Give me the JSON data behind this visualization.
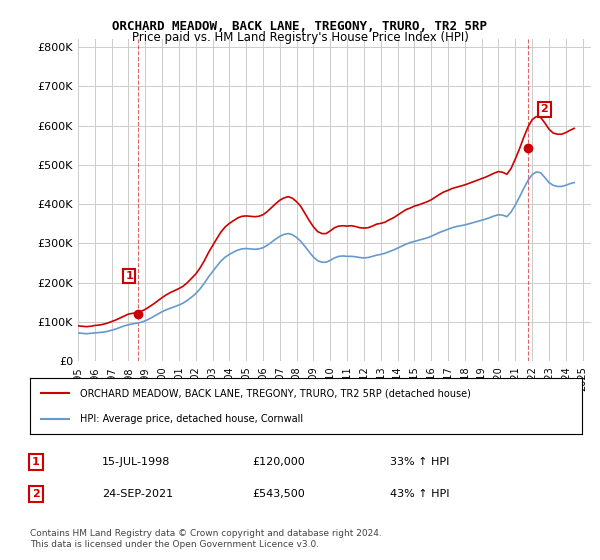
{
  "title": "ORCHARD MEADOW, BACK LANE, TREGONY, TRURO, TR2 5RP",
  "subtitle": "Price paid vs. HM Land Registry's House Price Index (HPI)",
  "ylabel_ticks": [
    "£0",
    "£100K",
    "£200K",
    "£300K",
    "£400K",
    "£500K",
    "£600K",
    "£700K",
    "£800K"
  ],
  "ytick_values": [
    0,
    100000,
    200000,
    300000,
    400000,
    500000,
    600000,
    700000,
    800000
  ],
  "ylim": [
    0,
    820000
  ],
  "xlim_start": 1995.0,
  "xlim_end": 2025.5,
  "xtick_years": [
    1995,
    1996,
    1997,
    1998,
    1999,
    2000,
    2001,
    2002,
    2003,
    2004,
    2005,
    2006,
    2007,
    2008,
    2009,
    2010,
    2011,
    2012,
    2013,
    2014,
    2015,
    2016,
    2017,
    2018,
    2019,
    2020,
    2021,
    2022,
    2023,
    2024,
    2025
  ],
  "bg_color": "#ffffff",
  "grid_color": "#cccccc",
  "red_color": "#cc0000",
  "blue_color": "#6699cc",
  "marker_color_1": "#cc0000",
  "marker_color_2": "#cc0000",
  "point1_x": 1998.54,
  "point1_y": 120000,
  "point2_x": 2021.73,
  "point2_y": 543500,
  "legend_red_label": "ORCHARD MEADOW, BACK LANE, TREGONY, TRURO, TR2 5RP (detached house)",
  "legend_blue_label": "HPI: Average price, detached house, Cornwall",
  "annotation1_label": "1",
  "annotation2_label": "2",
  "table_row1": [
    "1",
    "15-JUL-1998",
    "£120,000",
    "33% ↑ HPI"
  ],
  "table_row2": [
    "2",
    "24-SEP-2021",
    "£543,500",
    "43% ↑ HPI"
  ],
  "footer": "Contains HM Land Registry data © Crown copyright and database right 2024.\nThis data is licensed under the Open Government Licence v3.0.",
  "hpi_data_x": [
    1995.0,
    1995.25,
    1995.5,
    1995.75,
    1996.0,
    1996.25,
    1996.5,
    1996.75,
    1997.0,
    1997.25,
    1997.5,
    1997.75,
    1998.0,
    1998.25,
    1998.5,
    1998.75,
    1999.0,
    1999.25,
    1999.5,
    1999.75,
    2000.0,
    2000.25,
    2000.5,
    2000.75,
    2001.0,
    2001.25,
    2001.5,
    2001.75,
    2002.0,
    2002.25,
    2002.5,
    2002.75,
    2003.0,
    2003.25,
    2003.5,
    2003.75,
    2004.0,
    2004.25,
    2004.5,
    2004.75,
    2005.0,
    2005.25,
    2005.5,
    2005.75,
    2006.0,
    2006.25,
    2006.5,
    2006.75,
    2007.0,
    2007.25,
    2007.5,
    2007.75,
    2008.0,
    2008.25,
    2008.5,
    2008.75,
    2009.0,
    2009.25,
    2009.5,
    2009.75,
    2010.0,
    2010.25,
    2010.5,
    2010.75,
    2011.0,
    2011.25,
    2011.5,
    2011.75,
    2012.0,
    2012.25,
    2012.5,
    2012.75,
    2013.0,
    2013.25,
    2013.5,
    2013.75,
    2014.0,
    2014.25,
    2014.5,
    2014.75,
    2015.0,
    2015.25,
    2015.5,
    2015.75,
    2016.0,
    2016.25,
    2016.5,
    2016.75,
    2017.0,
    2017.25,
    2017.5,
    2017.75,
    2018.0,
    2018.25,
    2018.5,
    2018.75,
    2019.0,
    2019.25,
    2019.5,
    2019.75,
    2020.0,
    2020.25,
    2020.5,
    2020.75,
    2021.0,
    2021.25,
    2021.5,
    2021.75,
    2022.0,
    2022.25,
    2022.5,
    2022.75,
    2023.0,
    2023.25,
    2023.5,
    2023.75,
    2024.0,
    2024.25,
    2024.5
  ],
  "hpi_data_y": [
    72000,
    71000,
    70000,
    71000,
    72000,
    73000,
    74000,
    76000,
    79000,
    82000,
    86000,
    90000,
    93000,
    95000,
    97000,
    99000,
    103000,
    108000,
    114000,
    120000,
    126000,
    131000,
    135000,
    139000,
    143000,
    148000,
    155000,
    163000,
    172000,
    184000,
    198000,
    214000,
    228000,
    242000,
    255000,
    265000,
    272000,
    278000,
    283000,
    286000,
    287000,
    286000,
    285000,
    286000,
    289000,
    295000,
    303000,
    311000,
    318000,
    323000,
    325000,
    322000,
    315000,
    305000,
    292000,
    278000,
    265000,
    256000,
    252000,
    252000,
    257000,
    263000,
    267000,
    268000,
    267000,
    267000,
    266000,
    264000,
    263000,
    264000,
    267000,
    270000,
    272000,
    275000,
    279000,
    283000,
    288000,
    293000,
    298000,
    302000,
    305000,
    308000,
    311000,
    314000,
    318000,
    323000,
    328000,
    332000,
    336000,
    340000,
    343000,
    345000,
    347000,
    350000,
    353000,
    356000,
    359000,
    362000,
    366000,
    370000,
    373000,
    372000,
    368000,
    380000,
    398000,
    418000,
    440000,
    460000,
    475000,
    482000,
    480000,
    468000,
    455000,
    448000,
    445000,
    445000,
    448000,
    452000,
    455000
  ],
  "red_data_x": [
    1995.0,
    1995.25,
    1995.5,
    1995.75,
    1996.0,
    1996.25,
    1996.5,
    1996.75,
    1997.0,
    1997.25,
    1997.5,
    1997.75,
    1998.0,
    1998.25,
    1998.5,
    1998.75,
    1999.0,
    1999.25,
    1999.5,
    1999.75,
    2000.0,
    2000.25,
    2000.5,
    2000.75,
    2001.0,
    2001.25,
    2001.5,
    2001.75,
    2002.0,
    2002.25,
    2002.5,
    2002.75,
    2003.0,
    2003.25,
    2003.5,
    2003.75,
    2004.0,
    2004.25,
    2004.5,
    2004.75,
    2005.0,
    2005.25,
    2005.5,
    2005.75,
    2006.0,
    2006.25,
    2006.5,
    2006.75,
    2007.0,
    2007.25,
    2007.5,
    2007.75,
    2008.0,
    2008.25,
    2008.5,
    2008.75,
    2009.0,
    2009.25,
    2009.5,
    2009.75,
    2010.0,
    2010.25,
    2010.5,
    2010.75,
    2011.0,
    2011.25,
    2011.5,
    2011.75,
    2012.0,
    2012.25,
    2012.5,
    2012.75,
    2013.0,
    2013.25,
    2013.5,
    2013.75,
    2014.0,
    2014.25,
    2014.5,
    2014.75,
    2015.0,
    2015.25,
    2015.5,
    2015.75,
    2016.0,
    2016.25,
    2016.5,
    2016.75,
    2017.0,
    2017.25,
    2017.5,
    2017.75,
    2018.0,
    2018.25,
    2018.5,
    2018.75,
    2019.0,
    2019.25,
    2019.5,
    2019.75,
    2020.0,
    2020.25,
    2020.5,
    2020.75,
    2021.0,
    2021.25,
    2021.5,
    2021.75,
    2022.0,
    2022.25,
    2022.5,
    2022.75,
    2023.0,
    2023.25,
    2023.5,
    2023.75,
    2024.0,
    2024.25,
    2024.5
  ],
  "red_data_y": [
    90000,
    89000,
    88000,
    89000,
    91000,
    92000,
    94000,
    97000,
    101000,
    105000,
    110000,
    115000,
    120000,
    122000,
    124000,
    127000,
    132000,
    139000,
    146000,
    154000,
    162000,
    169000,
    175000,
    180000,
    185000,
    191000,
    200000,
    211000,
    222000,
    237000,
    255000,
    276000,
    294000,
    312000,
    329000,
    342000,
    351000,
    358000,
    365000,
    369000,
    370000,
    369000,
    368000,
    369000,
    373000,
    381000,
    391000,
    401000,
    410000,
    416000,
    419000,
    415000,
    406000,
    394000,
    376000,
    358000,
    342000,
    330000,
    325000,
    325000,
    332000,
    340000,
    344000,
    345000,
    344000,
    345000,
    343000,
    340000,
    339000,
    340000,
    344000,
    349000,
    351000,
    354000,
    360000,
    365000,
    372000,
    379000,
    386000,
    390000,
    395000,
    398000,
    402000,
    406000,
    411000,
    418000,
    425000,
    431000,
    435000,
    440000,
    443000,
    446000,
    449000,
    453000,
    457000,
    461000,
    465000,
    469000,
    474000,
    479000,
    483000,
    481000,
    476000,
    491000,
    515000,
    541000,
    570000,
    596000,
    615000,
    623000,
    621000,
    607000,
    591000,
    581000,
    578000,
    578000,
    582000,
    588000,
    593000
  ]
}
